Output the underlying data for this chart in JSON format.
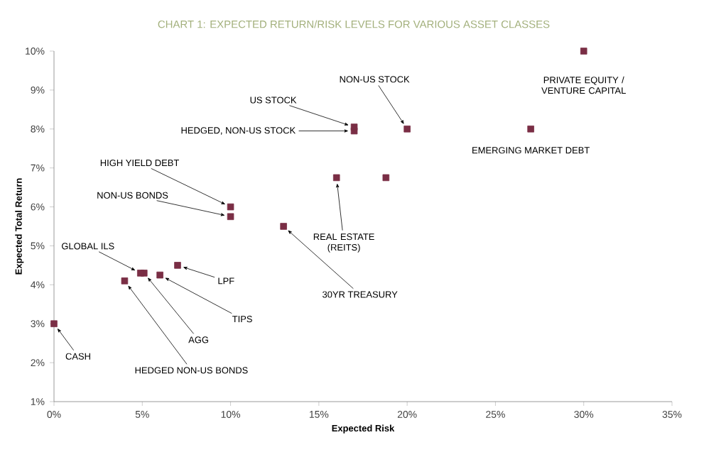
{
  "chart_data": {
    "type": "scatter",
    "title": "CHART 1: EXPECTED RETURN/RISK LEVELS FOR VARIOUS ASSET CLASSES",
    "xlabel": "Expected Risk",
    "ylabel": "Expected Total Return",
    "x": [
      0,
      4,
      5.1,
      4.9,
      6,
      7,
      13,
      10,
      10,
      16,
      18.8,
      17,
      17,
      20,
      27,
      30
    ],
    "values": [
      3,
      4.1,
      4.3,
      4.3,
      4.25,
      4.5,
      5.5,
      5.75,
      6,
      6.75,
      6.75,
      7.95,
      8.05,
      8,
      8,
      10
    ],
    "color": "#7a2e45",
    "marker": "square",
    "xlim": [
      0,
      35
    ],
    "ylim": [
      1,
      10
    ],
    "xticks": [
      {
        "value": 0,
        "label": "0%"
      },
      {
        "value": 5,
        "label": "5%"
      },
      {
        "value": 10,
        "label": "10%"
      },
      {
        "value": 15,
        "label": "15%"
      },
      {
        "value": 20,
        "label": "20%"
      },
      {
        "value": 25,
        "label": "25%"
      },
      {
        "value": 30,
        "label": "30%"
      },
      {
        "value": 35,
        "label": "35%"
      }
    ],
    "yticks": [
      {
        "value": 1,
        "label": "1%"
      },
      {
        "value": 2,
        "label": "2%"
      },
      {
        "value": 3,
        "label": "3%"
      },
      {
        "value": 4,
        "label": "4%"
      },
      {
        "value": 5,
        "label": "5%"
      },
      {
        "value": 6,
        "label": "6%"
      },
      {
        "value": 7,
        "label": "7%"
      },
      {
        "value": 8,
        "label": "8%"
      },
      {
        "value": 9,
        "label": "9%"
      },
      {
        "value": 10,
        "label": "10%"
      }
    ],
    "grid": false,
    "annotations": [
      {
        "text": "CASH",
        "x": 0,
        "y": 3
      },
      {
        "text": "HEDGED NON-US BONDS",
        "x": 4,
        "y": 4.1
      },
      {
        "text": "AGG",
        "x": 5.1,
        "y": 4.3
      },
      {
        "text": "GLOBAL ILS",
        "x": 4.9,
        "y": 4.3
      },
      {
        "text": "TIPS",
        "x": 6,
        "y": 4.25
      },
      {
        "text": "LPF",
        "x": 7,
        "y": 4.5
      },
      {
        "text": "30YR TREASURY",
        "x": 13,
        "y": 5.5
      },
      {
        "text": "NON-US BONDS",
        "x": 10,
        "y": 5.75
      },
      {
        "text": "HIGH YIELD DEBT",
        "x": 10,
        "y": 6
      },
      {
        "text": "REAL ESTATE (REITS)",
        "x": 16,
        "y": 6.75
      },
      {
        "text": "HEDGED, NON-US STOCK",
        "x": 17,
        "y": 7.95
      },
      {
        "text": "US STOCK",
        "x": 17,
        "y": 8.05
      },
      {
        "text": "NON-US STOCK",
        "x": 20,
        "y": 8
      },
      {
        "text": "EMERGING MARKET DEBT",
        "x": 27,
        "y": 8
      },
      {
        "text": "PRIVATE EQUITY / VENTURE CAPITAL",
        "x": 30,
        "y": 10
      }
    ]
  }
}
